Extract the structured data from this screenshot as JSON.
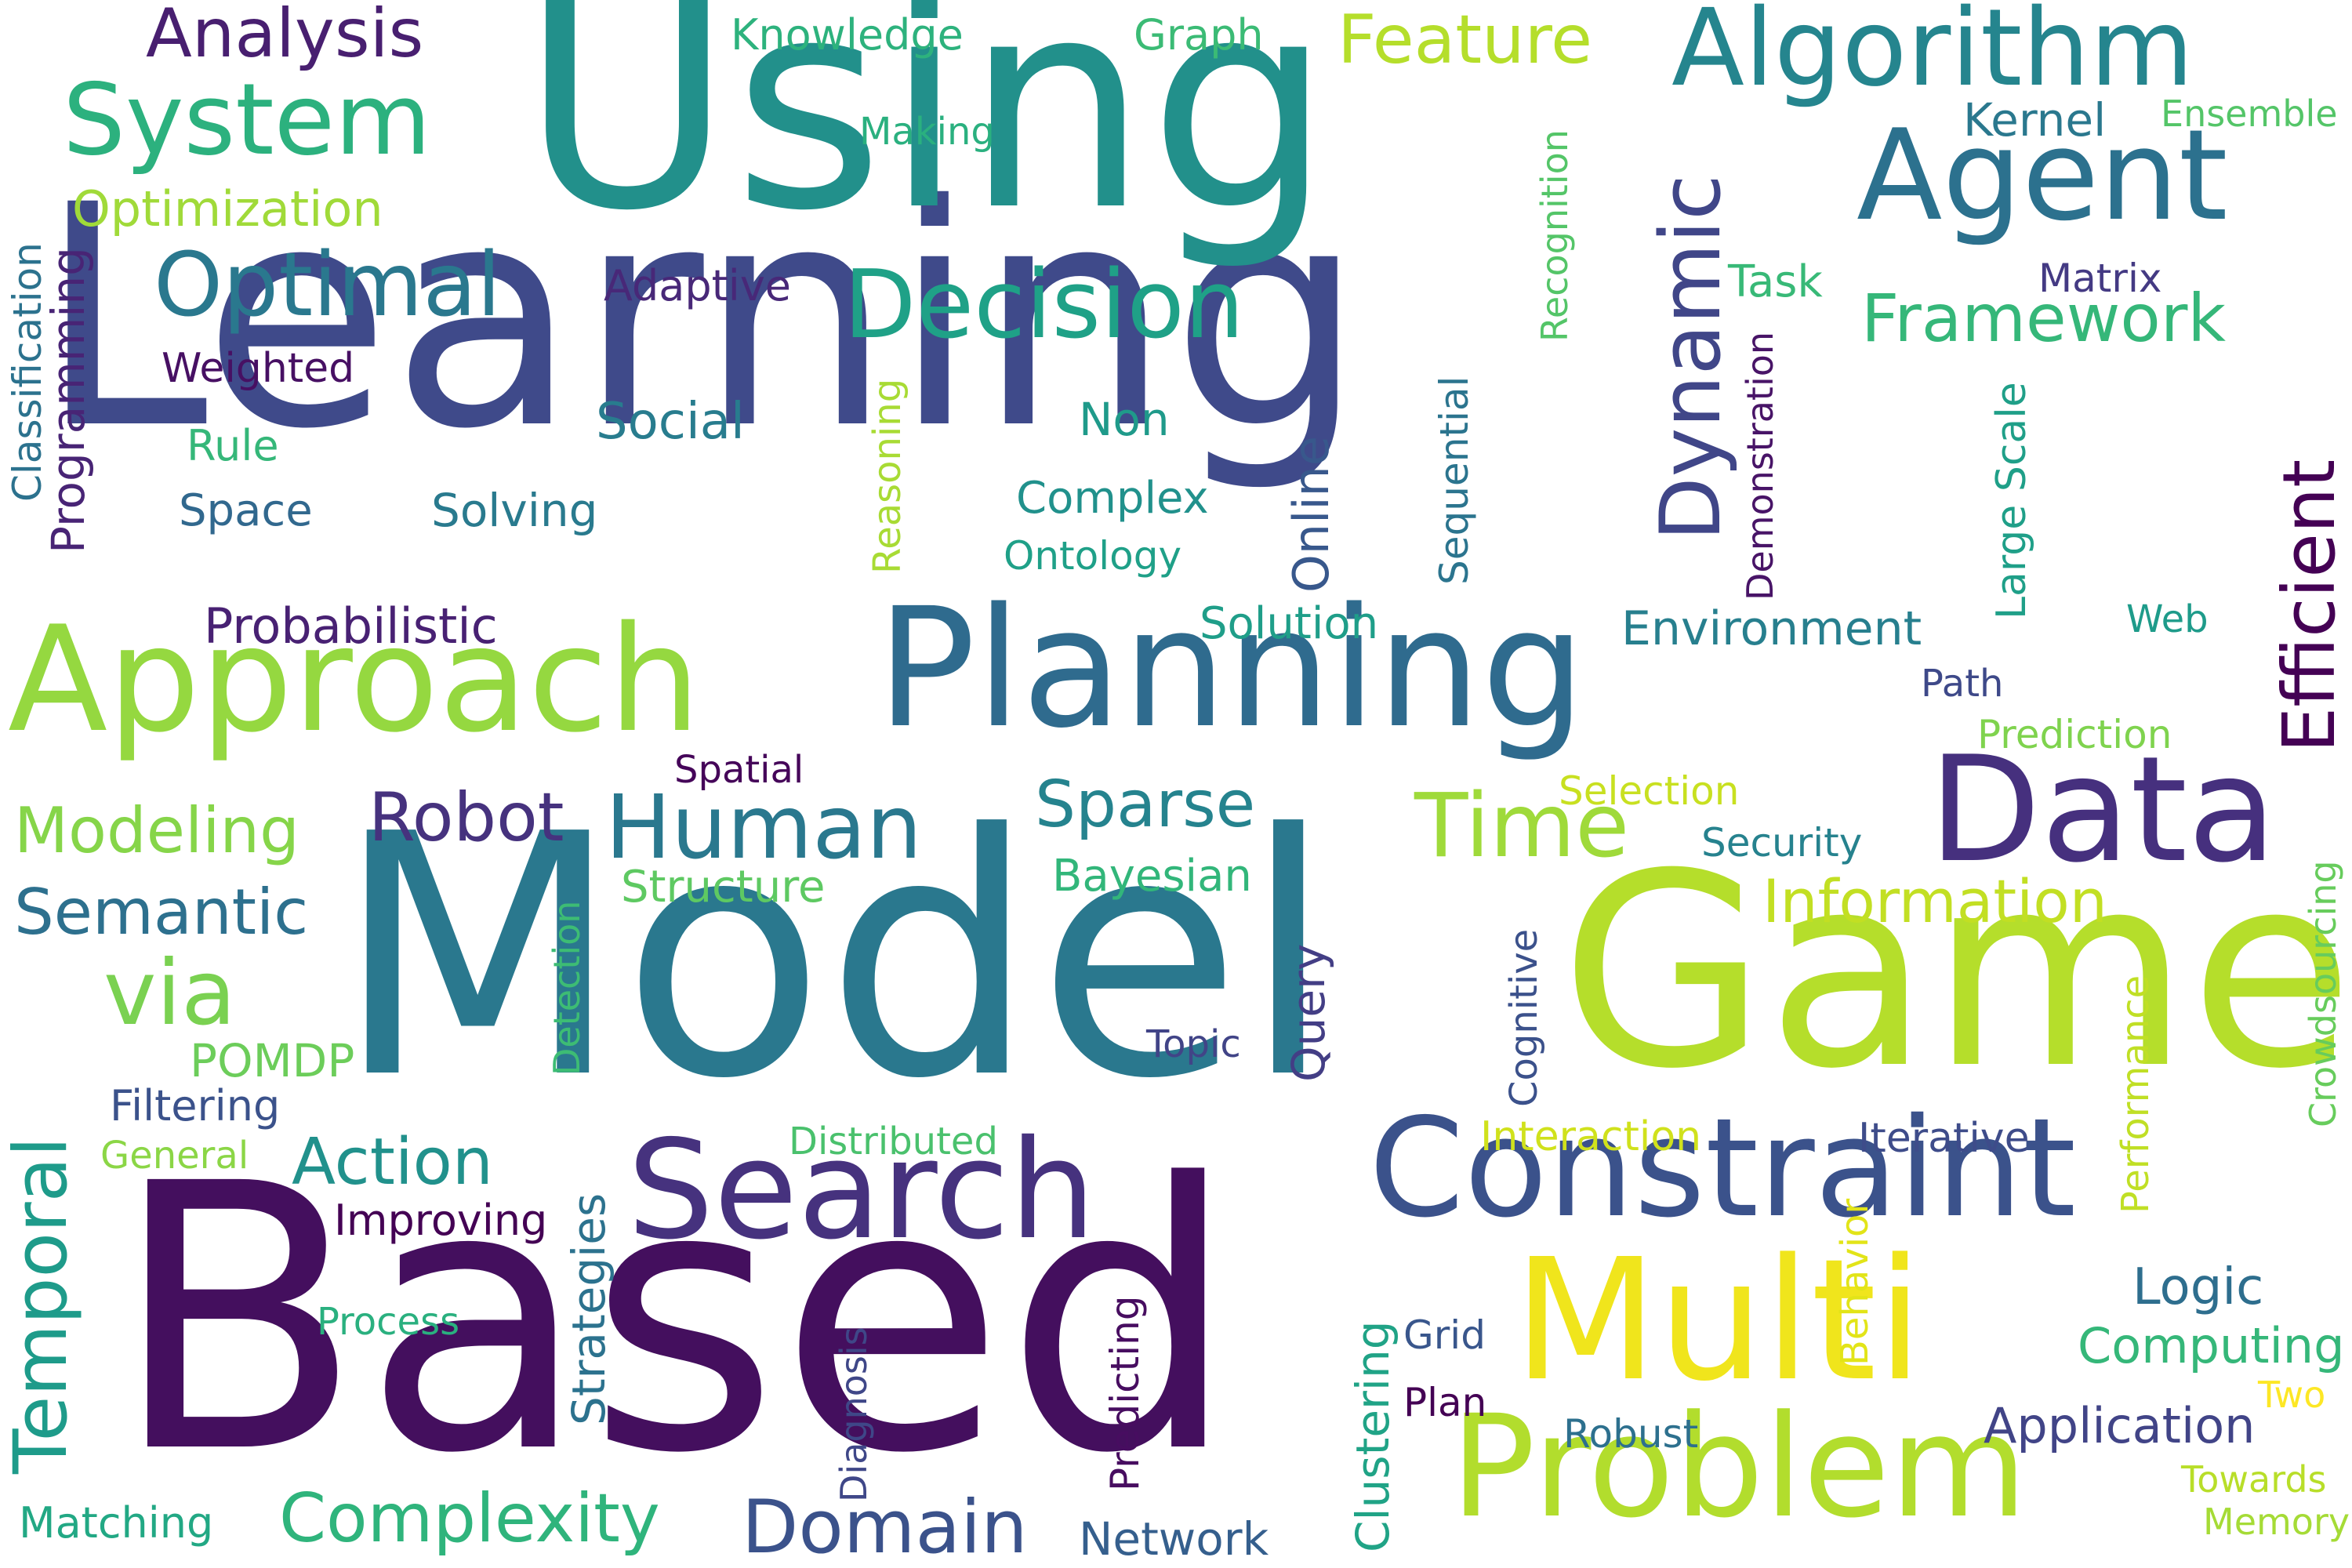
{
  "words": [
    {
      "text": "Learning",
      "color": "#3f4a8a"
    },
    {
      "text": "Using",
      "color": "#22908b"
    },
    {
      "text": "Model",
      "color": "#2a788e"
    },
    {
      "text": "Based",
      "color": "#440f5e"
    },
    {
      "text": "Game",
      "color": "#b5de2b"
    },
    {
      "text": "Planning",
      "color": "#2f6b8e"
    },
    {
      "text": "Approach",
      "color": "#95d840"
    },
    {
      "text": "Search",
      "color": "#46327e"
    },
    {
      "text": "Constraint",
      "color": "#3b528b"
    },
    {
      "text": "Multi",
      "color": "#f0e51c"
    },
    {
      "text": "Problem",
      "color": "#b2dd2d"
    },
    {
      "text": "Data",
      "color": "#46307e"
    },
    {
      "text": "Agent",
      "color": "#2c718e"
    },
    {
      "text": "Algorithm",
      "color": "#25858e"
    },
    {
      "text": "Human",
      "color": "#2a788e"
    },
    {
      "text": "Decision",
      "color": "#1fa187"
    },
    {
      "text": "Optimal",
      "color": "#2a788e"
    },
    {
      "text": "System",
      "color": "#2cb17e"
    },
    {
      "text": "Time",
      "color": "#9fda3a"
    },
    {
      "text": "Analysis",
      "color": "#481f70"
    },
    {
      "text": "Feature",
      "color": "#b5de2b"
    },
    {
      "text": "Framework",
      "color": "#35b779"
    },
    {
      "text": "Robot",
      "color": "#46327e"
    },
    {
      "text": "Sparse",
      "color": "#25838e"
    },
    {
      "text": "Modeling",
      "color": "#86d549"
    },
    {
      "text": "Semantic",
      "color": "#2d708e"
    },
    {
      "text": "via",
      "color": "#7ad151"
    },
    {
      "text": "Action",
      "color": "#21918c"
    },
    {
      "text": "Domain",
      "color": "#3b528b"
    },
    {
      "text": "Complexity",
      "color": "#2fb47c"
    },
    {
      "text": "Information",
      "color": "#c2df23"
    },
    {
      "text": "Optimization",
      "color": "#a0da39"
    },
    {
      "text": "Probabilistic",
      "color": "#482173"
    },
    {
      "text": "Logic",
      "color": "#2e6e8e"
    },
    {
      "text": "Computing",
      "color": "#35b779"
    },
    {
      "text": "Application",
      "color": "#414487"
    },
    {
      "text": "Environment",
      "color": "#277f8e"
    },
    {
      "text": "Adaptive",
      "color": "#482878"
    },
    {
      "text": "Knowledge",
      "color": "#2db27d"
    },
    {
      "text": "Graph",
      "color": "#3bbb75"
    },
    {
      "text": "Making",
      "color": "#2ab07f"
    },
    {
      "text": "Kernel",
      "color": "#2a788e"
    },
    {
      "text": "Ensemble",
      "color": "#54c568"
    },
    {
      "text": "Task",
      "color": "#38b977"
    },
    {
      "text": "Matrix",
      "color": "#443a83"
    },
    {
      "text": "Weighted",
      "color": "#471063"
    },
    {
      "text": "Rule",
      "color": "#35b779"
    },
    {
      "text": "Space",
      "color": "#31688e"
    },
    {
      "text": "Social",
      "color": "#287c8e"
    },
    {
      "text": "Solving",
      "color": "#297a8e"
    },
    {
      "text": "Non",
      "color": "#1f9a8a"
    },
    {
      "text": "Complex",
      "color": "#21918c"
    },
    {
      "text": "Ontology",
      "color": "#1fa088"
    },
    {
      "text": "Solution",
      "color": "#1f9e89"
    },
    {
      "text": "Web",
      "color": "#1e9b8a"
    },
    {
      "text": "Path",
      "color": "#3e4989"
    },
    {
      "text": "Prediction",
      "color": "#7fd34e"
    },
    {
      "text": "Selection",
      "color": "#c8e020"
    },
    {
      "text": "Security",
      "color": "#26828e"
    },
    {
      "text": "Spatial",
      "color": "#450559"
    },
    {
      "text": "Bayesian",
      "color": "#32b67a"
    },
    {
      "text": "Structure",
      "color": "#5ec962"
    },
    {
      "text": "POMDP",
      "color": "#6ccd5a"
    },
    {
      "text": "Filtering",
      "color": "#3b528b"
    },
    {
      "text": "General",
      "color": "#8bd646"
    },
    {
      "text": "Topic",
      "color": "#414487"
    },
    {
      "text": "Distributed",
      "color": "#4ac16d"
    },
    {
      "text": "Interaction",
      "color": "#d0e11c"
    },
    {
      "text": "Iterative",
      "color": "#3e4c8a"
    },
    {
      "text": "Improving",
      "color": "#440154"
    },
    {
      "text": "Process",
      "color": "#2ab07f"
    },
    {
      "text": "Grid",
      "color": "#39568c"
    },
    {
      "text": "Plan",
      "color": "#440154"
    },
    {
      "text": "Robust",
      "color": "#2d708e"
    },
    {
      "text": "Two",
      "color": "#fde725"
    },
    {
      "text": "Towards",
      "color": "#b8de29"
    },
    {
      "text": "Memory",
      "color": "#a5db36"
    },
    {
      "text": "Matching",
      "color": "#22a884"
    },
    {
      "text": "Network",
      "color": "#355f8d"
    },
    {
      "text": "Classification",
      "color": "#2c728e"
    },
    {
      "text": "Programming",
      "color": "#482475"
    },
    {
      "text": "Recognition",
      "color": "#54c568"
    },
    {
      "text": "Dynamic",
      "color": "#404688"
    },
    {
      "text": "Efficient",
      "color": "#440154"
    },
    {
      "text": "Demonstration",
      "color": "#481467"
    },
    {
      "text": "Sequential",
      "color": "#2b748e"
    },
    {
      "text": "Online",
      "color": "#38588c"
    },
    {
      "text": "Large Scale",
      "color": "#1f9f88"
    },
    {
      "text": "Reasoning",
      "color": "#a8db34"
    },
    {
      "text": "Temporal",
      "color": "#1e9b8a"
    },
    {
      "text": "Detection",
      "color": "#3dbc74"
    },
    {
      "text": "Strategies",
      "color": "#2c728e"
    },
    {
      "text": "Query",
      "color": "#433e85"
    },
    {
      "text": "Diagnosis",
      "color": "#3f4788"
    },
    {
      "text": "Predicting",
      "color": "#470d60"
    },
    {
      "text": "Clustering",
      "color": "#20a386"
    },
    {
      "text": "Cognitive",
      "color": "#3b518b"
    },
    {
      "text": "Behavior",
      "color": "#e2e418"
    },
    {
      "text": "Performance",
      "color": "#c0df25"
    },
    {
      "text": "Crowdsourcing",
      "color": "#67cc5c"
    }
  ]
}
